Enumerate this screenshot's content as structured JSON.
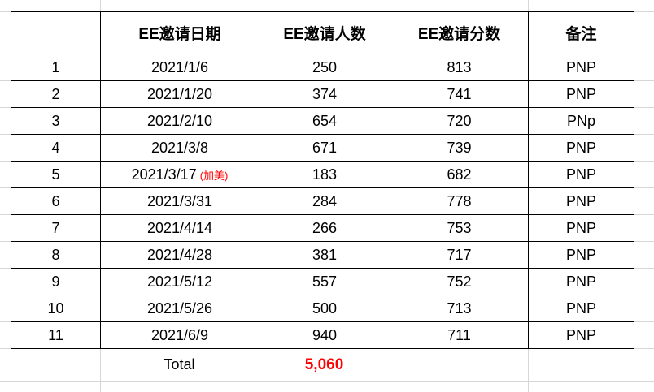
{
  "table": {
    "headers": {
      "index": "",
      "date": "EE邀请日期",
      "count": "EE邀请人数",
      "score": "EE邀请分数",
      "note": "备注"
    },
    "rows": [
      {
        "index": "1",
        "date": "2021/1/6",
        "count": "250",
        "score": "813",
        "note": "PNP"
      },
      {
        "index": "2",
        "date": "2021/1/20",
        "count": "374",
        "score": "741",
        "note": "PNP"
      },
      {
        "index": "3",
        "date": "2021/2/10",
        "count": "654",
        "score": "720",
        "note": "PNp"
      },
      {
        "index": "4",
        "date": "2021/3/8",
        "count": "671",
        "score": "739",
        "note": "PNP"
      },
      {
        "index": "5",
        "date": "2021/3/17",
        "date_note": "(加美)",
        "count": "183",
        "score": "682",
        "note": "PNP"
      },
      {
        "index": "6",
        "date": "2021/3/31",
        "count": "284",
        "score": "778",
        "note": "PNP"
      },
      {
        "index": "7",
        "date": "2021/4/14",
        "count": "266",
        "score": "753",
        "note": "PNP"
      },
      {
        "index": "8",
        "date": "2021/4/28",
        "count": "381",
        "score": "717",
        "note": "PNP"
      },
      {
        "index": "9",
        "date": "2021/5/12",
        "count": "557",
        "score": "752",
        "note": "PNP"
      },
      {
        "index": "10",
        "date": "2021/5/26",
        "count": "500",
        "score": "713",
        "note": "PNP"
      },
      {
        "index": "11",
        "date": "2021/6/9",
        "count": "940",
        "score": "711",
        "note": "PNP"
      }
    ],
    "total": {
      "label": "Total",
      "value": "5,060"
    }
  },
  "colors": {
    "red_accent": "#FF0000",
    "table_border": "#000000",
    "grid_gray": "#D6D6D6"
  }
}
